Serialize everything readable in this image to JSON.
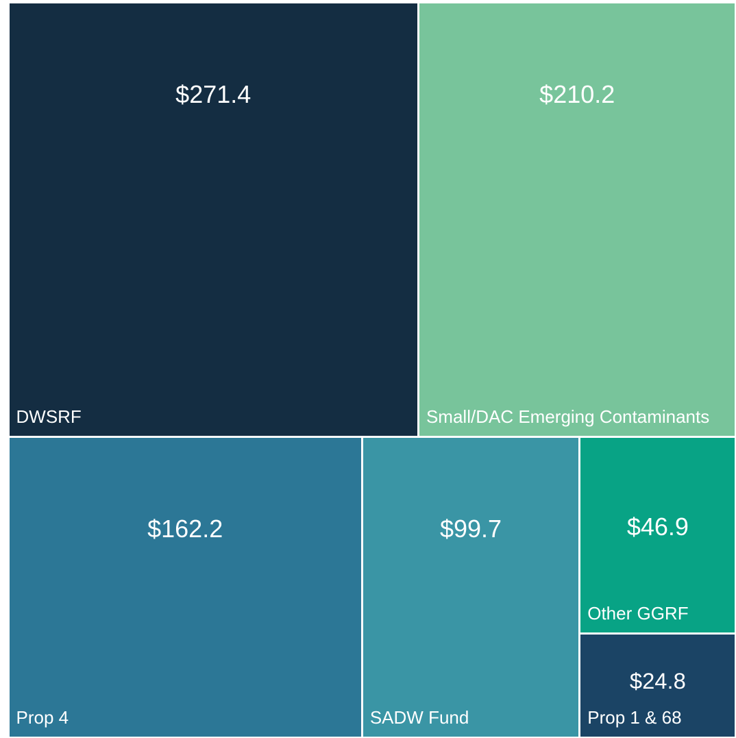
{
  "chart_data": {
    "type": "treemap",
    "categories": [
      "DWSRF",
      "Small/DAC Emerging Contaminants",
      "Prop 4",
      "SADW Fund",
      "Other GGRF",
      "Prop 1 & 68"
    ],
    "values": [
      271.4,
      210.2,
      162.2,
      99.7,
      46.9,
      24.8
    ],
    "value_labels": [
      "$271.4",
      "$210.2",
      "$162.2",
      "$99.7",
      "$46.9",
      "$24.8"
    ],
    "colors": [
      "#142d42",
      "#78c49b",
      "#2c7796",
      "#3a95a5",
      "#08a385",
      "#1b4465"
    ]
  }
}
